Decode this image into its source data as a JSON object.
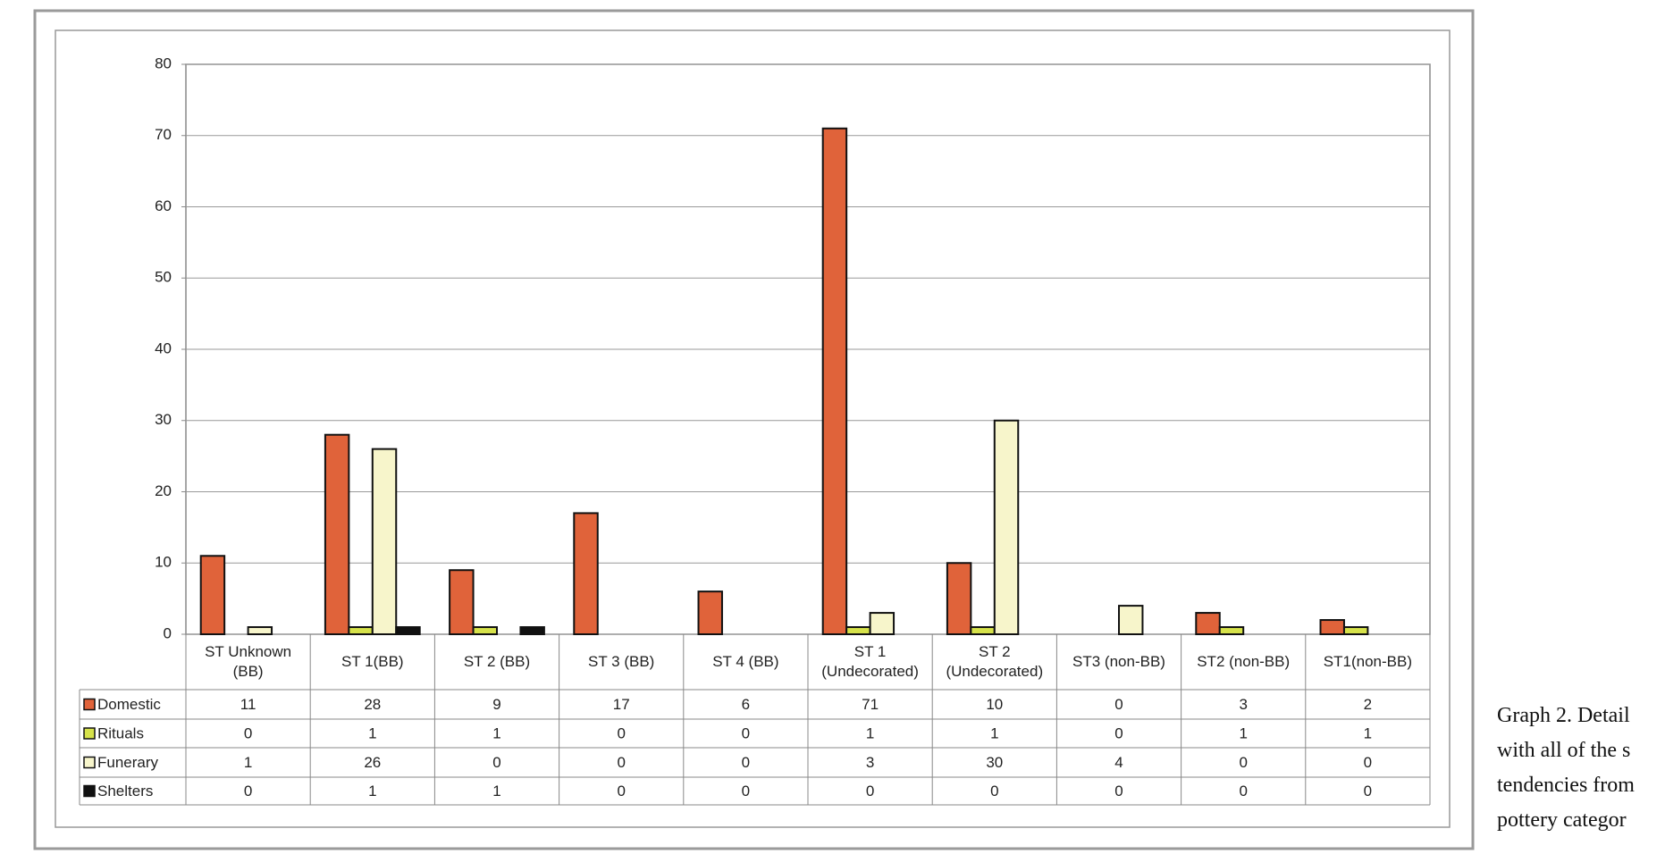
{
  "chart_data": {
    "type": "bar",
    "categories": [
      "ST Unknown (BB)",
      "ST 1(BB)",
      "ST 2 (BB)",
      "ST 3 (BB)",
      "ST 4 (BB)",
      "ST 1 (Undecorated)",
      "ST 2 (Undecorated)",
      "ST3 (non-BB)",
      "ST2 (non-BB)",
      "ST1(non-BB)"
    ],
    "series": [
      {
        "name": "Domestic",
        "color": "#e0633a",
        "values": [
          11,
          28,
          9,
          17,
          6,
          71,
          10,
          0,
          3,
          2
        ]
      },
      {
        "name": "Rituals",
        "color": "#d6e24a",
        "values": [
          0,
          1,
          1,
          0,
          0,
          1,
          1,
          0,
          1,
          1
        ]
      },
      {
        "name": "Funerary",
        "color": "#f7f5cb",
        "values": [
          1,
          26,
          0,
          0,
          0,
          3,
          30,
          4,
          0,
          0
        ]
      },
      {
        "name": "Shelters",
        "color": "#111111",
        "values": [
          0,
          1,
          1,
          0,
          0,
          0,
          0,
          0,
          0,
          0
        ]
      }
    ],
    "ylim": [
      0,
      80
    ],
    "yticks": [
      0,
      10,
      20,
      30,
      40,
      50,
      60,
      70,
      80
    ],
    "grid": true,
    "data_table": true
  },
  "caption": [
    "Graph 2. Detail",
    "with all of the s",
    "tendencies from",
    "pottery categor"
  ]
}
